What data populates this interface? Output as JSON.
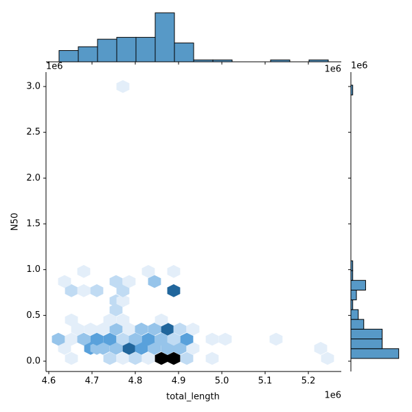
{
  "chart_data": [
    {
      "type": "hexbin",
      "xlabel": "total_length",
      "ylabel": "N50",
      "x_offset": "1e6",
      "y_offset": "1e6",
      "colormap": [
        "#e3eef9",
        "#a5cdee",
        "#3a8fd4",
        "#1d5f93",
        "#000000"
      ],
      "x": [
        4652400,
        4741200,
        4771400,
        4800000,
        4830100,
        4860300,
        4888800,
        4919000,
        4977700,
        5244300,
        4636500,
        4696800,
        4711100,
        4725400,
        4755500,
        4785700,
        4814200,
        4844400,
        4874600,
        4903100,
        4933300,
        5228500,
        4622200,
        4652400,
        4680900,
        4711100,
        4741200,
        4771400,
        4800000,
        4830100,
        4860300,
        4888800,
        4919000,
        4977700,
        5007900,
        5125300,
        4666700,
        4696800,
        4725400,
        4755500,
        4785700,
        4814200,
        4844400,
        4874600,
        4903100,
        4933300,
        4652400,
        4741200,
        4771400,
        4860300,
        4755500,
        4755500,
        4771400,
        4652400,
        4680900,
        4711100,
        4771400,
        4888800,
        4636500,
        4755500,
        4785700,
        4844400,
        4680900,
        4830100,
        4888800,
        4771400
      ],
      "y": [
        30000,
        30000,
        30000,
        30000,
        30000,
        30000,
        30000,
        30000,
        30000,
        30000,
        140000,
        140000,
        140000,
        140000,
        140000,
        140000,
        140000,
        140000,
        140000,
        140000,
        140000,
        140000,
        240000,
        240000,
        240000,
        240000,
        240000,
        240000,
        240000,
        240000,
        240000,
        240000,
        240000,
        240000,
        240000,
        240000,
        350000,
        350000,
        350000,
        350000,
        350000,
        350000,
        350000,
        350000,
        350000,
        350000,
        450000,
        450000,
        450000,
        450000,
        560000,
        660000,
        660000,
        770000,
        770000,
        770000,
        770000,
        770000,
        870000,
        870000,
        870000,
        870000,
        980000,
        980000,
        980000,
        3000000
      ],
      "counts": [
        1,
        2,
        1,
        2,
        1,
        8,
        8,
        2,
        1,
        1,
        1,
        4,
        3,
        3,
        3,
        6,
        4,
        3,
        3,
        3,
        1,
        1,
        3,
        1,
        3,
        4,
        4,
        2,
        3,
        4,
        3,
        2,
        4,
        1,
        1,
        1,
        1,
        1,
        1,
        3,
        1,
        3,
        3,
        6,
        2,
        1,
        1,
        1,
        1,
        1,
        2,
        2,
        1,
        2,
        1,
        2,
        2,
        6,
        1,
        2,
        1,
        3,
        1,
        1,
        1,
        1
      ],
      "xlim": [
        4593650,
        5276060
      ],
      "ylim": [
        -112500,
        3157500
      ],
      "xticks": [
        {
          "value": 4600000,
          "label": "4.6"
        },
        {
          "value": 4700000,
          "label": "4.7"
        },
        {
          "value": 4800000,
          "label": "4.8"
        },
        {
          "value": 4900000,
          "label": "4.9"
        },
        {
          "value": 5000000,
          "label": "5.0"
        },
        {
          "value": 5100000,
          "label": "5.1"
        },
        {
          "value": 5200000,
          "label": "5.2"
        }
      ],
      "yticks": [
        {
          "value": 0,
          "label": "0.0"
        },
        {
          "value": 500000,
          "label": "0.5"
        },
        {
          "value": 1000000,
          "label": "1.0"
        },
        {
          "value": 1500000,
          "label": "1.5"
        },
        {
          "value": 2000000,
          "label": "2.0"
        },
        {
          "value": 2500000,
          "label": "2.5"
        },
        {
          "value": 3000000,
          "label": "3.0"
        }
      ]
    },
    {
      "type": "histogram",
      "orientation": "vertical",
      "x_offset": "1e6",
      "color": "#5799c7",
      "bins": [
        4623800,
        4668240,
        4712680,
        4757120,
        4801560,
        4846000,
        4890440,
        4934880,
        4979320,
        5023760,
        5068200,
        5112640,
        5157080,
        5201520,
        5245960
      ],
      "counts": [
        6,
        8,
        12,
        13,
        13,
        26,
        10,
        1,
        1,
        0,
        0,
        1,
        0,
        1
      ],
      "xlim": [
        4593650,
        5276060
      ],
      "ylim": [
        0,
        27
      ]
    },
    {
      "type": "histogram",
      "orientation": "horizontal",
      "y_offset": "1e6",
      "color": "#5799c7",
      "bins": [
        30000,
        136600,
        243200,
        349800,
        456400,
        563000,
        669600,
        776200,
        882800,
        989400,
        1096000,
        1202600,
        1309200,
        1415800,
        1522400,
        1629000,
        1735600,
        1842200,
        1948800,
        2055400,
        2162000,
        2268600,
        2375200,
        2481800,
        2588400,
        2695000,
        2801600,
        2908200,
        3014800
      ],
      "counts": [
        26,
        17,
        17,
        7,
        4,
        1,
        3,
        8,
        1,
        1,
        0,
        0,
        0,
        0,
        0,
        0,
        0,
        0,
        0,
        0,
        0,
        0,
        0,
        0,
        0,
        0,
        0,
        1
      ],
      "xlim": [
        0,
        26.5
      ],
      "ylim": [
        -112500,
        3157500
      ]
    }
  ]
}
